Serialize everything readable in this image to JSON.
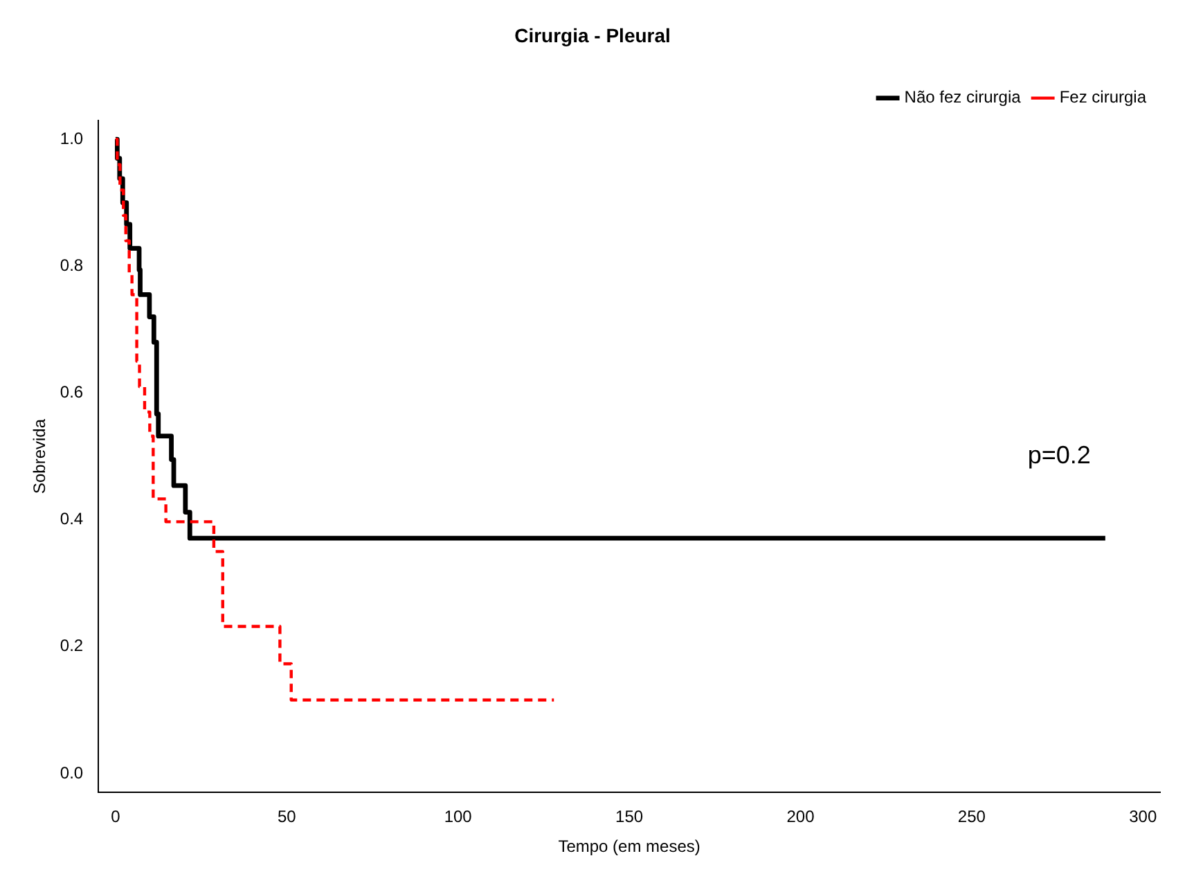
{
  "chart_data": {
    "type": "step",
    "title": "Cirurgia - Pleural",
    "xlabel": "Tempo (em meses)",
    "ylabel": "Sobrevida",
    "xlim": [
      -5,
      305
    ],
    "xticks": [
      0,
      50,
      100,
      150,
      200,
      250,
      300
    ],
    "ylim": [
      -0.03,
      1.03
    ],
    "yticks": [
      {
        "value": 0,
        "label": "0.0"
      },
      0.2,
      0.4,
      0.6,
      0.8,
      {
        "value": 1,
        "label": "1.0"
      }
    ],
    "series": [
      {
        "name": "Não fez cirurgia",
        "color": "#000000",
        "line_style": "solid",
        "x": [
          0,
          0.5,
          1.2,
          2.1,
          3.2,
          4.2,
          6.9,
          7.2,
          9.9,
          11.2,
          12.0,
          12.5,
          16.3,
          17.0,
          20.4,
          21.7,
          289
        ],
        "values": [
          1.0,
          0.97,
          0.938,
          0.9,
          0.866,
          0.828,
          0.794,
          0.755,
          0.72,
          0.68,
          0.567,
          0.532,
          0.495,
          0.454,
          0.412,
          0.371,
          0.371
        ]
      },
      {
        "name": "Fez cirurgia",
        "color": "#ff0000",
        "line_style": "dashed",
        "x": [
          0,
          0.5,
          1.3,
          2.3,
          3.0,
          4.0,
          4.8,
          6.2,
          7.0,
          8.5,
          10.0,
          11.0,
          14.7,
          28.7,
          31.3,
          48.0,
          51.3,
          128
        ],
        "values": [
          1.0,
          0.96,
          0.92,
          0.88,
          0.84,
          0.79,
          0.755,
          0.65,
          0.61,
          0.57,
          0.532,
          0.433,
          0.397,
          0.35,
          0.232,
          0.173,
          0.116,
          0.116
        ]
      }
    ],
    "annotations": [
      "p=0.2"
    ],
    "legend": "top right",
    "grid": false
  }
}
